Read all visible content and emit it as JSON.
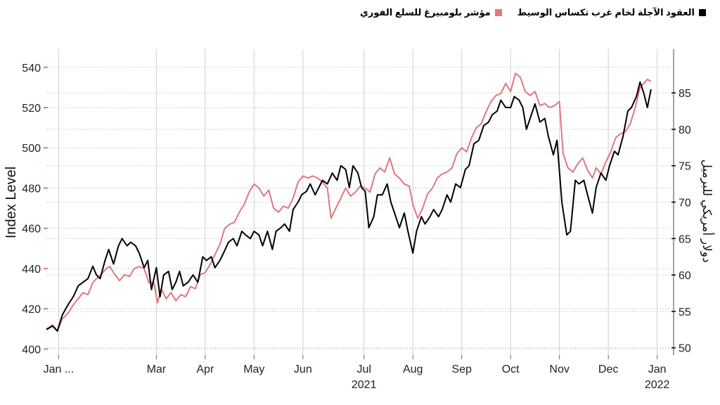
{
  "legend": {
    "series1_label": "العقود الآجلة لخام غرب تكساس الوسيط",
    "series2_label": "مؤشر بلومبيرغ للسلع الفوري"
  },
  "colors": {
    "wti": "#000000",
    "bcom": "#e07780",
    "grid": "#cfcfcf"
  },
  "chart_data": {
    "type": "line",
    "ylabel_left": "Index Level",
    "ylabel_right": "دولار أمريكي للبرميل",
    "ylim_left": [
      397,
      549
    ],
    "ylim_right": [
      49,
      91
    ],
    "left_ticks": [
      400,
      420,
      440,
      460,
      480,
      500,
      520,
      540
    ],
    "right_ticks": [
      50,
      55,
      60,
      65,
      70,
      75,
      80,
      85
    ],
    "x_months": [
      "Jan ...",
      "Mar",
      "Apr",
      "May",
      "Jun",
      "Jul",
      "Aug",
      "Sep",
      "Oct",
      "Nov",
      "Dec",
      "Jan"
    ],
    "x_month_positions": [
      1,
      9,
      13,
      17,
      21,
      26,
      30,
      34,
      38,
      42,
      46,
      50
    ],
    "x_year_labels": [
      {
        "text": "2021",
        "pos": 26
      },
      {
        "text": "2022",
        "pos": 50
      }
    ],
    "x_range": [
      0,
      51
    ],
    "grid": true,
    "series": [
      {
        "name": "العقود الآجلة لخام غرب تكساس الوسيط",
        "axis": "right",
        "points": [
          [
            0,
            52.5
          ],
          [
            0.5,
            53
          ],
          [
            0.9,
            52.3
          ],
          [
            1.3,
            54.5
          ],
          [
            1.8,
            56
          ],
          [
            2.2,
            57
          ],
          [
            2.6,
            58.5
          ],
          [
            3,
            59
          ],
          [
            3.4,
            59.5
          ],
          [
            3.8,
            61.2
          ],
          [
            4.1,
            60
          ],
          [
            4.4,
            59.5
          ],
          [
            4.8,
            62
          ],
          [
            5.1,
            63.5
          ],
          [
            5.5,
            61.5
          ],
          [
            5.9,
            64
          ],
          [
            6.2,
            65
          ],
          [
            6.6,
            64
          ],
          [
            6.9,
            64.5
          ],
          [
            7.3,
            64
          ],
          [
            7.6,
            63
          ],
          [
            8,
            61
          ],
          [
            8.3,
            62
          ],
          [
            8.6,
            58
          ],
          [
            9,
            61
          ],
          [
            9.3,
            57
          ],
          [
            9.6,
            60
          ],
          [
            10,
            60.5
          ],
          [
            10.3,
            58
          ],
          [
            10.6,
            59
          ],
          [
            10.9,
            60.5
          ],
          [
            11.2,
            58.5
          ],
          [
            11.6,
            59
          ],
          [
            12,
            60
          ],
          [
            12.4,
            59
          ],
          [
            12.8,
            62.5
          ],
          [
            13.1,
            62
          ],
          [
            13.5,
            62.5
          ],
          [
            13.8,
            61
          ],
          [
            14.2,
            62
          ],
          [
            14.5,
            63
          ],
          [
            14.9,
            64.5
          ],
          [
            15.3,
            65
          ],
          [
            15.6,
            64
          ],
          [
            16,
            66
          ],
          [
            16.3,
            65.5
          ],
          [
            16.7,
            65
          ],
          [
            17,
            66
          ],
          [
            17.4,
            65.5
          ],
          [
            17.7,
            64
          ],
          [
            18.1,
            66
          ],
          [
            18.5,
            63.5
          ],
          [
            18.8,
            66
          ],
          [
            19.2,
            66.5
          ],
          [
            19.5,
            67
          ],
          [
            19.9,
            66
          ],
          [
            20.2,
            69
          ],
          [
            20.6,
            70
          ],
          [
            20.9,
            71
          ],
          [
            21.3,
            71.5
          ],
          [
            21.6,
            72.5
          ],
          [
            22,
            71
          ],
          [
            22.3,
            72
          ],
          [
            22.6,
            73
          ],
          [
            23,
            72.5
          ],
          [
            23.4,
            74
          ],
          [
            23.8,
            73
          ],
          [
            24.1,
            75
          ],
          [
            24.5,
            74.5
          ],
          [
            24.8,
            72
          ],
          [
            25.1,
            75
          ],
          [
            25.5,
            74
          ],
          [
            25.8,
            72
          ],
          [
            26.1,
            71.5
          ],
          [
            26.4,
            66.5
          ],
          [
            26.8,
            68
          ],
          [
            27.1,
            71
          ],
          [
            27.5,
            71
          ],
          [
            27.9,
            72.5
          ],
          [
            28.2,
            70
          ],
          [
            28.6,
            68
          ],
          [
            28.9,
            66.5
          ],
          [
            29.3,
            68.5
          ],
          [
            29.6,
            66
          ],
          [
            30,
            63
          ],
          [
            30.3,
            66
          ],
          [
            30.7,
            68
          ],
          [
            31,
            67
          ],
          [
            31.4,
            68
          ],
          [
            31.7,
            69
          ],
          [
            32.1,
            68
          ],
          [
            32.4,
            69
          ],
          [
            32.8,
            71
          ],
          [
            33.1,
            70
          ],
          [
            33.5,
            72.5
          ],
          [
            33.9,
            72
          ],
          [
            34.3,
            74.5
          ],
          [
            34.6,
            75
          ],
          [
            35,
            78
          ],
          [
            35.4,
            78.5
          ],
          [
            35.8,
            80.5
          ],
          [
            36.2,
            81
          ],
          [
            36.5,
            82
          ],
          [
            36.9,
            82.5
          ],
          [
            37.2,
            84
          ],
          [
            37.6,
            83
          ],
          [
            38,
            83
          ],
          [
            38.3,
            84.5
          ],
          [
            38.7,
            84
          ],
          [
            39,
            83
          ],
          [
            39.3,
            80
          ],
          [
            39.7,
            82
          ],
          [
            40,
            83.5
          ],
          [
            40.4,
            81
          ],
          [
            40.8,
            81.5
          ],
          [
            41.1,
            79
          ],
          [
            41.5,
            76.5
          ],
          [
            41.8,
            78.5
          ],
          [
            42.2,
            70
          ],
          [
            42.6,
            65.5
          ],
          [
            42.9,
            66
          ],
          [
            43.3,
            73
          ],
          [
            43.6,
            72.5
          ],
          [
            44,
            73
          ],
          [
            44.3,
            71
          ],
          [
            44.7,
            68.5
          ],
          [
            45,
            72
          ],
          [
            45.4,
            74
          ],
          [
            45.8,
            73
          ],
          [
            46.1,
            75
          ],
          [
            46.5,
            77
          ],
          [
            46.8,
            76.5
          ],
          [
            47.2,
            79
          ],
          [
            47.6,
            82.5
          ],
          [
            47.9,
            83
          ],
          [
            48.3,
            84.5
          ],
          [
            48.6,
            86.5
          ],
          [
            48.9,
            85
          ],
          [
            49.2,
            83
          ],
          [
            49.5,
            85.5
          ]
        ]
      },
      {
        "name": "مؤشر بلومبيرغ للسلع الفوري",
        "axis": "left",
        "points": [
          [
            0,
            410
          ],
          [
            0.5,
            412
          ],
          [
            0.9,
            409
          ],
          [
            1.3,
            415
          ],
          [
            1.8,
            418
          ],
          [
            2.2,
            422
          ],
          [
            2.6,
            425
          ],
          [
            3,
            428
          ],
          [
            3.4,
            427
          ],
          [
            3.8,
            433
          ],
          [
            4.1,
            435
          ],
          [
            4.5,
            437
          ],
          [
            4.9,
            440
          ],
          [
            5.2,
            441
          ],
          [
            5.6,
            437
          ],
          [
            6,
            434
          ],
          [
            6.4,
            437
          ],
          [
            6.8,
            436
          ],
          [
            7.2,
            440
          ],
          [
            7.6,
            441
          ],
          [
            8,
            440
          ],
          [
            8.4,
            433
          ],
          [
            8.8,
            433
          ],
          [
            9.1,
            423
          ],
          [
            9.4,
            430
          ],
          [
            9.8,
            425
          ],
          [
            10.2,
            428
          ],
          [
            10.6,
            424
          ],
          [
            11,
            427
          ],
          [
            11.4,
            426
          ],
          [
            11.8,
            431
          ],
          [
            12.2,
            430
          ],
          [
            12.6,
            437
          ],
          [
            13,
            438
          ],
          [
            13.4,
            442
          ],
          [
            13.8,
            447
          ],
          [
            14.2,
            452
          ],
          [
            14.6,
            460
          ],
          [
            15,
            462
          ],
          [
            15.4,
            463
          ],
          [
            15.8,
            468
          ],
          [
            16.2,
            472
          ],
          [
            16.6,
            478
          ],
          [
            17,
            482
          ],
          [
            17.4,
            480
          ],
          [
            17.8,
            476
          ],
          [
            18.2,
            479
          ],
          [
            18.6,
            470
          ],
          [
            19,
            468
          ],
          [
            19.4,
            471
          ],
          [
            19.8,
            470
          ],
          [
            20.2,
            475
          ],
          [
            20.6,
            483
          ],
          [
            21,
            486
          ],
          [
            21.4,
            485
          ],
          [
            21.8,
            486
          ],
          [
            22.2,
            485
          ],
          [
            22.6,
            483
          ],
          [
            23,
            480
          ],
          [
            23.3,
            465
          ],
          [
            23.7,
            470
          ],
          [
            24.1,
            475
          ],
          [
            24.5,
            480
          ],
          [
            24.9,
            476
          ],
          [
            25.3,
            478
          ],
          [
            25.7,
            481
          ],
          [
            26.1,
            480
          ],
          [
            26.5,
            478
          ],
          [
            26.9,
            487
          ],
          [
            27.3,
            490
          ],
          [
            27.7,
            488
          ],
          [
            28.1,
            495
          ],
          [
            28.5,
            487
          ],
          [
            28.9,
            485
          ],
          [
            29.3,
            482
          ],
          [
            29.7,
            481
          ],
          [
            30,
            472
          ],
          [
            30.4,
            465
          ],
          [
            30.8,
            470
          ],
          [
            31.2,
            477
          ],
          [
            31.6,
            480
          ],
          [
            32,
            485
          ],
          [
            32.4,
            487
          ],
          [
            32.8,
            488
          ],
          [
            33.2,
            490
          ],
          [
            33.6,
            497
          ],
          [
            34,
            500
          ],
          [
            34.4,
            498
          ],
          [
            34.8,
            505
          ],
          [
            35.2,
            510
          ],
          [
            35.6,
            512
          ],
          [
            36,
            518
          ],
          [
            36.4,
            523
          ],
          [
            36.8,
            526
          ],
          [
            37.2,
            527
          ],
          [
            37.6,
            532
          ],
          [
            38,
            528
          ],
          [
            38.4,
            537
          ],
          [
            38.8,
            535
          ],
          [
            39.2,
            528
          ],
          [
            39.6,
            526
          ],
          [
            40,
            528
          ],
          [
            40.4,
            521
          ],
          [
            40.8,
            522
          ],
          [
            41.2,
            520
          ],
          [
            41.6,
            521
          ],
          [
            42,
            523
          ],
          [
            42.3,
            497
          ],
          [
            42.7,
            490
          ],
          [
            43.1,
            488
          ],
          [
            43.5,
            492
          ],
          [
            43.9,
            495
          ],
          [
            44.3,
            489
          ],
          [
            44.7,
            485
          ],
          [
            45,
            490
          ],
          [
            45.4,
            487
          ],
          [
            45.8,
            493
          ],
          [
            46.2,
            498
          ],
          [
            46.6,
            505
          ],
          [
            47,
            507
          ],
          [
            47.4,
            508
          ],
          [
            47.8,
            512
          ],
          [
            48.2,
            520
          ],
          [
            48.6,
            530
          ],
          [
            48.9,
            532
          ],
          [
            49.2,
            534
          ],
          [
            49.5,
            533
          ]
        ]
      }
    ]
  }
}
